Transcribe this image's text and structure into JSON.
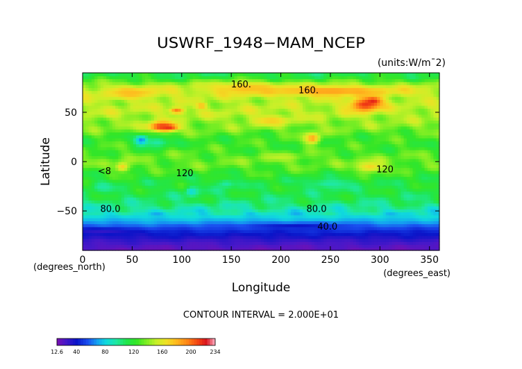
{
  "chart_data": {
    "type": "heatmap",
    "title": "USWRF_1948−MAM_NCEP",
    "units_label": "(units:W/m¯2)",
    "xlabel": "Longitude",
    "ylabel": "Latitude",
    "x_unit_label": "(degrees_east)",
    "y_unit_label": "(degrees_north)",
    "xlim": [
      0,
      360
    ],
    "ylim": [
      -90,
      90
    ],
    "x_ticks": [
      0,
      50,
      100,
      150,
      200,
      250,
      300,
      350
    ],
    "x_tick_labels": [
      "0",
      "50",
      "100",
      "150",
      "200",
      "250",
      "300",
      "350"
    ],
    "y_ticks": [
      -50,
      0,
      50
    ],
    "y_tick_labels": [
      "−50",
      "0",
      "50"
    ],
    "contour_interval_text": "CONTOUR INTERVAL = 2.000E+01",
    "contour_labels": [
      {
        "text": "160.",
        "lon": 160,
        "lat": 78
      },
      {
        "text": "160.",
        "lon": 228,
        "lat": 72
      },
      {
        "text": "120",
        "lon": 103,
        "lat": -12
      },
      {
        "text": "120",
        "lon": 305,
        "lat": -8
      },
      {
        "text": "80.0",
        "lon": 28,
        "lat": -48
      },
      {
        "text": "80.0",
        "lon": 236,
        "lat": -48
      },
      {
        "text": "40.0",
        "lon": 247,
        "lat": -66
      },
      {
        "text": "<8",
        "lon": 22,
        "lat": -10
      }
    ],
    "lat_profile": [
      {
        "lat": -90,
        "value": 18
      },
      {
        "lat": -85,
        "value": 22
      },
      {
        "lat": -80,
        "value": 28
      },
      {
        "lat": -75,
        "value": 38
      },
      {
        "lat": -70,
        "value": 46
      },
      {
        "lat": -65,
        "value": 58
      },
      {
        "lat": -60,
        "value": 72
      },
      {
        "lat": -55,
        "value": 82
      },
      {
        "lat": -50,
        "value": 90
      },
      {
        "lat": -45,
        "value": 98
      },
      {
        "lat": -40,
        "value": 106
      },
      {
        "lat": -35,
        "value": 110
      },
      {
        "lat": -30,
        "value": 112
      },
      {
        "lat": -25,
        "value": 114
      },
      {
        "lat": -20,
        "value": 116
      },
      {
        "lat": -15,
        "value": 120
      },
      {
        "lat": -10,
        "value": 124
      },
      {
        "lat": -5,
        "value": 130
      },
      {
        "lat": 0,
        "value": 134
      },
      {
        "lat": 5,
        "value": 132
      },
      {
        "lat": 10,
        "value": 128
      },
      {
        "lat": 15,
        "value": 125
      },
      {
        "lat": 20,
        "value": 124
      },
      {
        "lat": 25,
        "value": 126
      },
      {
        "lat": 30,
        "value": 132
      },
      {
        "lat": 35,
        "value": 138
      },
      {
        "lat": 40,
        "value": 142
      },
      {
        "lat": 45,
        "value": 146
      },
      {
        "lat": 50,
        "value": 150
      },
      {
        "lat": 55,
        "value": 150
      },
      {
        "lat": 60,
        "value": 148
      },
      {
        "lat": 65,
        "value": 150
      },
      {
        "lat": 70,
        "value": 156
      },
      {
        "lat": 75,
        "value": 152
      },
      {
        "lat": 80,
        "value": 138
      },
      {
        "lat": 85,
        "value": 120
      },
      {
        "lat": 90,
        "value": 110
      }
    ],
    "features": [
      {
        "lon": 85,
        "lat": 35,
        "value": 232,
        "r_lon": 10,
        "r_lat": 3
      },
      {
        "lon": 80,
        "lat": 36,
        "value": 210,
        "r_lon": 14,
        "r_lat": 5
      },
      {
        "lon": 285,
        "lat": 58,
        "value": 212,
        "r_lon": 16,
        "r_lat": 7
      },
      {
        "lon": 293,
        "lat": 62,
        "value": 218,
        "r_lon": 8,
        "r_lat": 4
      },
      {
        "lon": 95,
        "lat": 52,
        "value": 198,
        "r_lon": 7,
        "r_lat": 3
      },
      {
        "lon": 120,
        "lat": 57,
        "value": 190,
        "r_lon": 5,
        "r_lat": 2
      },
      {
        "lon": 60,
        "lat": 22,
        "value": 55,
        "r_lon": 7,
        "r_lat": 5
      },
      {
        "lon": 75,
        "lat": 20,
        "value": 95,
        "r_lon": 14,
        "r_lat": 6
      },
      {
        "lon": 232,
        "lat": 24,
        "value": 185,
        "r_lon": 8,
        "r_lat": 6
      },
      {
        "lon": 40,
        "lat": -5,
        "value": 170,
        "r_lon": 7,
        "r_lat": 5
      },
      {
        "lon": 290,
        "lat": -5,
        "value": 170,
        "r_lon": 14,
        "r_lat": 6
      },
      {
        "lon": 250,
        "lat": 72,
        "value": 188,
        "r_lon": 60,
        "r_lat": 5
      },
      {
        "lon": 165,
        "lat": 75,
        "value": 178,
        "r_lon": 35,
        "r_lat": 6
      },
      {
        "lon": 50,
        "lat": 70,
        "value": 178,
        "r_lon": 25,
        "r_lat": 6
      },
      {
        "lon": 190,
        "lat": 42,
        "value": 172,
        "r_lon": 20,
        "r_lat": 5
      },
      {
        "lon": 110,
        "lat": -30,
        "value": 82,
        "r_lon": 6,
        "r_lat": 5
      },
      {
        "lon": 145,
        "lat": -22,
        "value": 95,
        "r_lon": 10,
        "r_lat": 5
      },
      {
        "lon": 250,
        "lat": -22,
        "value": 95,
        "r_lon": 25,
        "r_lat": 6
      },
      {
        "lon": 20,
        "lat": -25,
        "value": 95,
        "r_lon": 10,
        "r_lat": 5
      },
      {
        "lon": 200,
        "lat": 5,
        "value": 150,
        "r_lon": 20,
        "r_lat": 4
      },
      {
        "lon": 215,
        "lat": -65,
        "value": 40,
        "r_lon": 50,
        "r_lat": 3
      },
      {
        "lon": 20,
        "lat": -70,
        "value": 30,
        "r_lon": 30,
        "r_lat": 3
      }
    ],
    "colorbar": {
      "min": 12.6,
      "max": 234,
      "tick_values": [
        12.6,
        40,
        80,
        120,
        160,
        200,
        234
      ],
      "tick_labels": [
        "12.6",
        "40",
        "80",
        "120",
        "160",
        "200",
        "234"
      ]
    },
    "color_stops": [
      {
        "v": 12.6,
        "c": "#7a0fb0"
      },
      {
        "v": 24,
        "c": "#4a18c8"
      },
      {
        "v": 40,
        "c": "#0a14c8"
      },
      {
        "v": 56,
        "c": "#1a50f0"
      },
      {
        "v": 70,
        "c": "#14a6f0"
      },
      {
        "v": 82,
        "c": "#10dcdc"
      },
      {
        "v": 96,
        "c": "#20e8a0"
      },
      {
        "v": 110,
        "c": "#20e64c"
      },
      {
        "v": 124,
        "c": "#34e626"
      },
      {
        "v": 138,
        "c": "#7eee24"
      },
      {
        "v": 152,
        "c": "#c8f028"
      },
      {
        "v": 166,
        "c": "#f0e024"
      },
      {
        "v": 180,
        "c": "#ffb81e"
      },
      {
        "v": 196,
        "c": "#ff8216"
      },
      {
        "v": 212,
        "c": "#f03a14"
      },
      {
        "v": 222,
        "c": "#d8141e"
      },
      {
        "v": 234,
        "c": "#ffb4c8"
      }
    ]
  }
}
